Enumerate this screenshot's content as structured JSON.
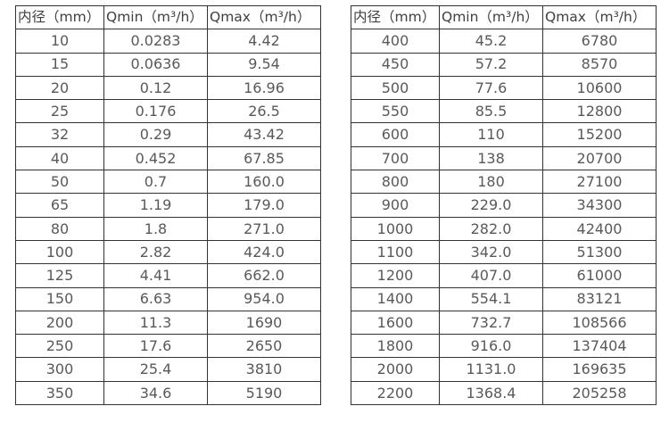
{
  "colors": {
    "border": "#333333",
    "header_text": "#404040",
    "cell_text": "#595959",
    "background": "#ffffff"
  },
  "tables": [
    {
      "name": "flow-table-small-diameters",
      "headers": [
        "内径（mm）",
        "Qmin（m³/h）",
        "Qmax（m³/h）"
      ],
      "rows": [
        [
          "10",
          "0.0283",
          "4.42"
        ],
        [
          "15",
          "0.0636",
          "9.54"
        ],
        [
          "20",
          "0.12",
          "16.96"
        ],
        [
          "25",
          "0.176",
          "26.5"
        ],
        [
          "32",
          "0.29",
          "43.42"
        ],
        [
          "40",
          "0.452",
          "67.85"
        ],
        [
          "50",
          "0.7",
          "160.0"
        ],
        [
          "65",
          "1.19",
          "179.0"
        ],
        [
          "80",
          "1.8",
          "271.0"
        ],
        [
          "100",
          "2.82",
          "424.0"
        ],
        [
          "125",
          "4.41",
          "662.0"
        ],
        [
          "150",
          "6.63",
          "954.0"
        ],
        [
          "200",
          "11.3",
          "1690"
        ],
        [
          "250",
          "17.6",
          "2650"
        ],
        [
          "300",
          "25.4",
          "3810"
        ],
        [
          "350",
          "34.6",
          "5190"
        ]
      ]
    },
    {
      "name": "flow-table-large-diameters",
      "headers": [
        "内径（mm）",
        "Qmin（m³/h）",
        "Qmax（m³/h）"
      ],
      "rows": [
        [
          "400",
          "45.2",
          "6780"
        ],
        [
          "450",
          "57.2",
          "8570"
        ],
        [
          "500",
          "77.6",
          "10600"
        ],
        [
          "550",
          "85.5",
          "12800"
        ],
        [
          "600",
          "110",
          "15200"
        ],
        [
          "700",
          "138",
          "20700"
        ],
        [
          "800",
          "180",
          "27100"
        ],
        [
          "900",
          "229.0",
          "34300"
        ],
        [
          "1000",
          "282.0",
          "42400"
        ],
        [
          "1100",
          "342.0",
          "51300"
        ],
        [
          "1200",
          "407.0",
          "61000"
        ],
        [
          "1400",
          "554.1",
          "83121"
        ],
        [
          "1600",
          "732.7",
          "108566"
        ],
        [
          "1800",
          "916.0",
          "137404"
        ],
        [
          "2000",
          "1131.0",
          "169635"
        ],
        [
          "2200",
          "1368.4",
          "205258"
        ]
      ]
    }
  ]
}
